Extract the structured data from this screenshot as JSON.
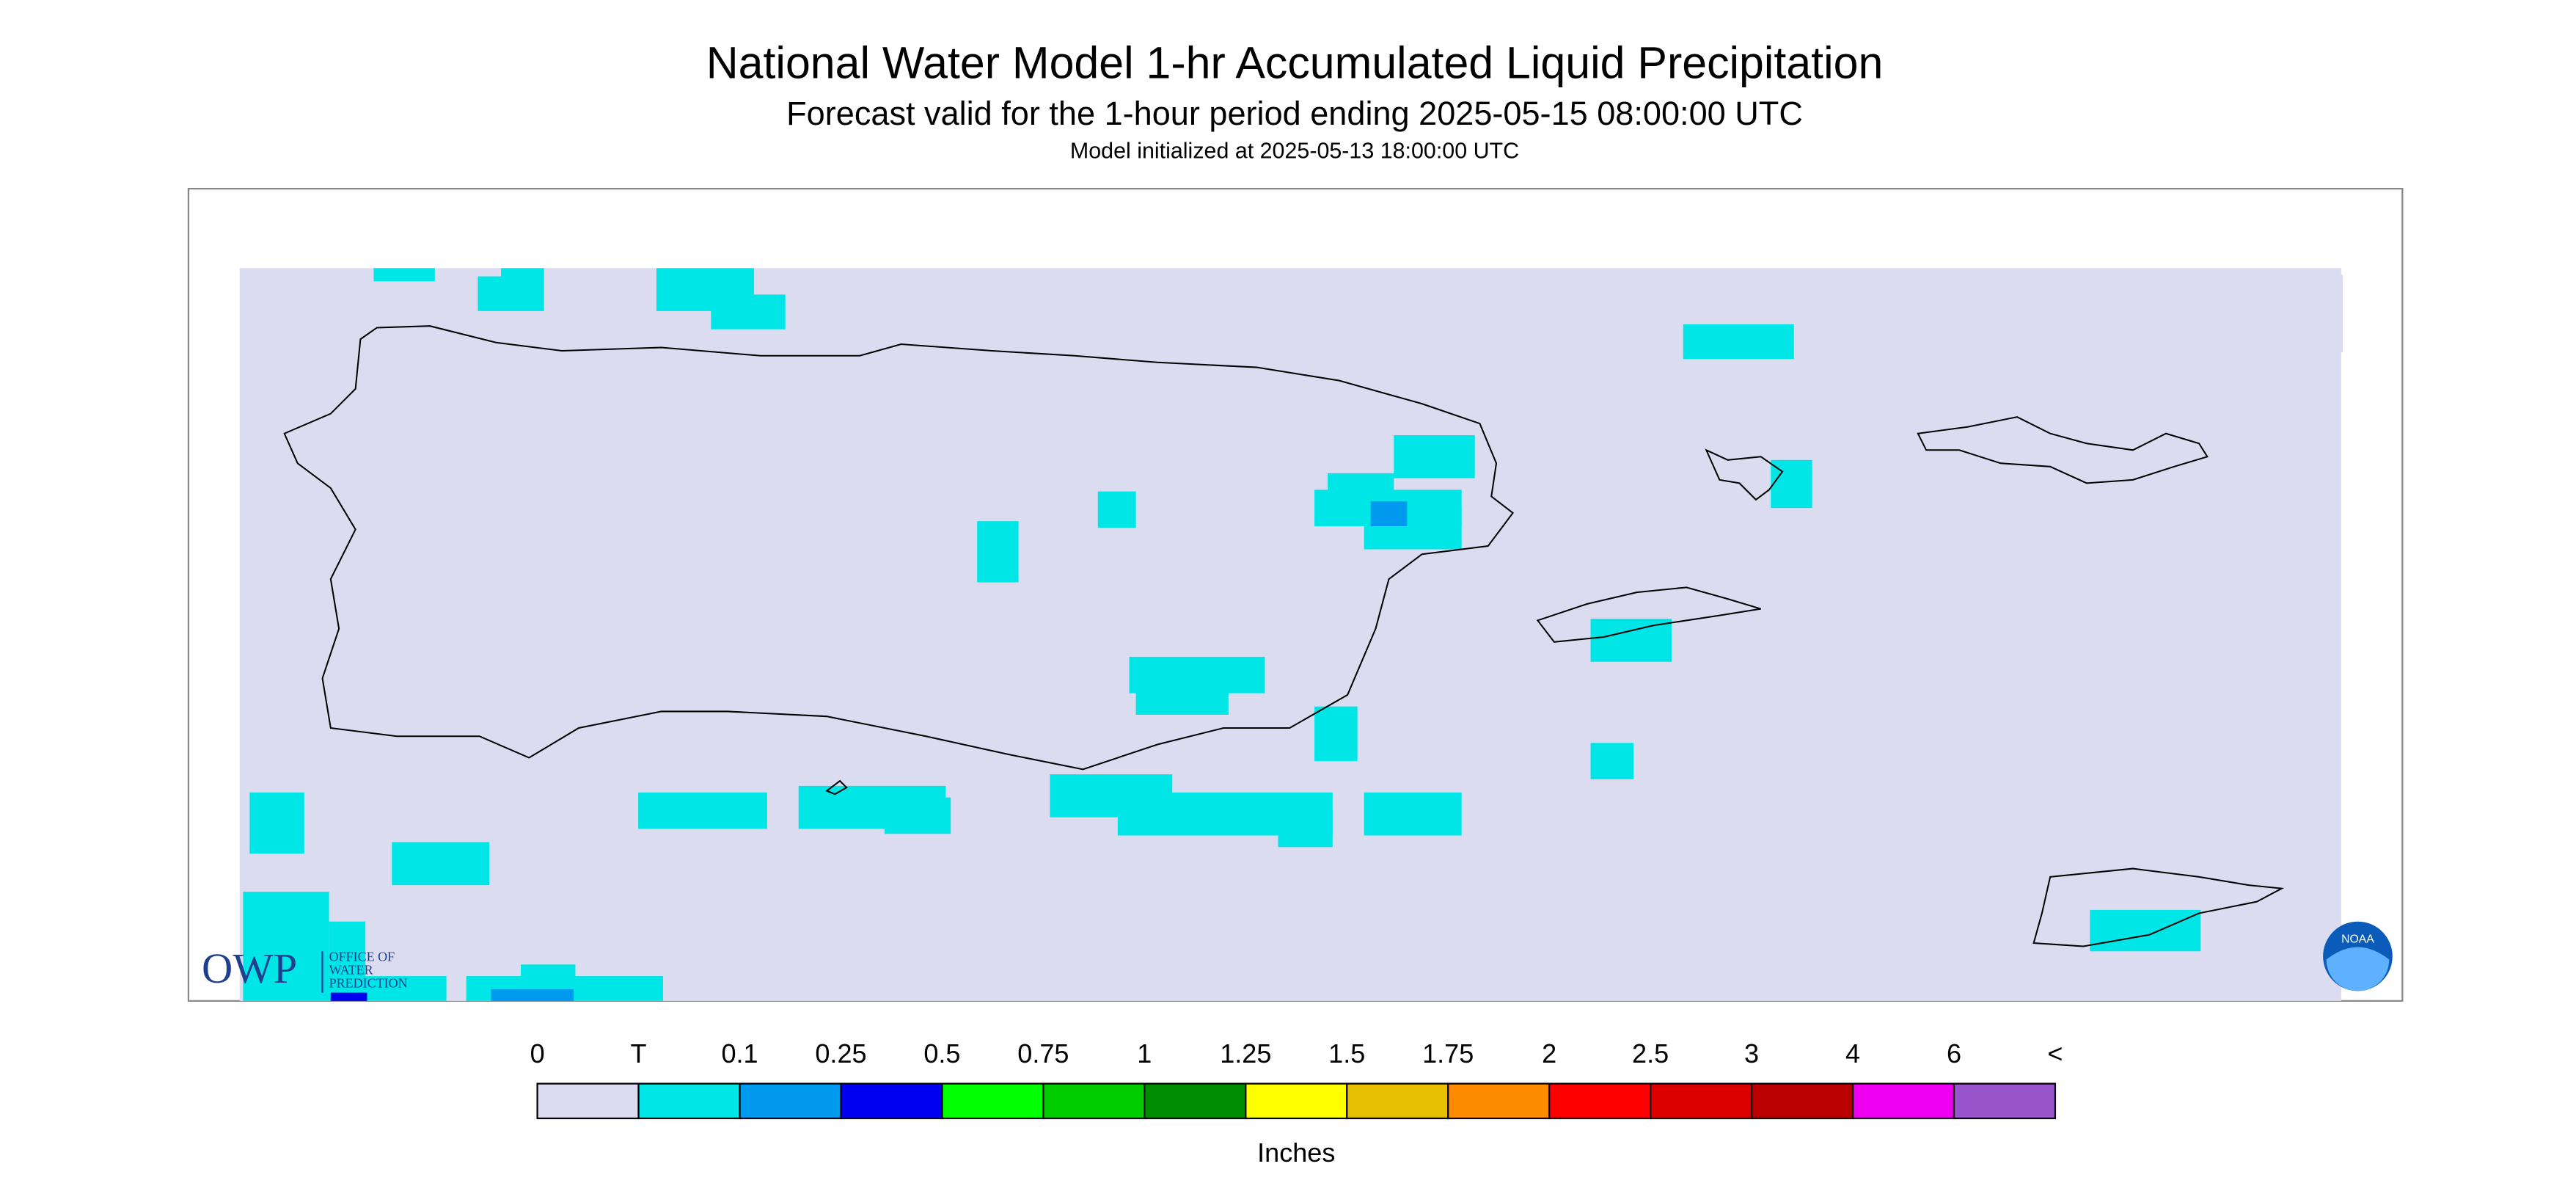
{
  "title": "National Water Model 1-hr Accumulated Liquid Precipitation",
  "subtitle": "Forecast valid for the 1-hour period ending 2025-05-15 08:00:00 UTC",
  "init_note": "Model initialized at 2025-05-13 18:00:00 UTC",
  "legend": {
    "labels": [
      "0",
      "T",
      "0.1",
      "0.25",
      "0.5",
      "0.75",
      "1",
      "1.25",
      "1.5",
      "1.75",
      "2",
      "2.5",
      "3",
      "4",
      "6",
      "<"
    ],
    "colors": [
      "#dcdcf0",
      "#00e6e6",
      "#0099f0",
      "#0000f0",
      "#00ff00",
      "#00cc00",
      "#008c00",
      "#ffff00",
      "#e6bf00",
      "#ff8c00",
      "#ff0000",
      "#dd0000",
      "#bb0000",
      "#f000f0",
      "#9955cc"
    ],
    "unit": "Inches"
  },
  "logos": {
    "owp": "OWP",
    "owp_full": [
      "OFFICE OF",
      "WATER",
      "PREDICTION"
    ],
    "noaa": "NOAA"
  }
}
